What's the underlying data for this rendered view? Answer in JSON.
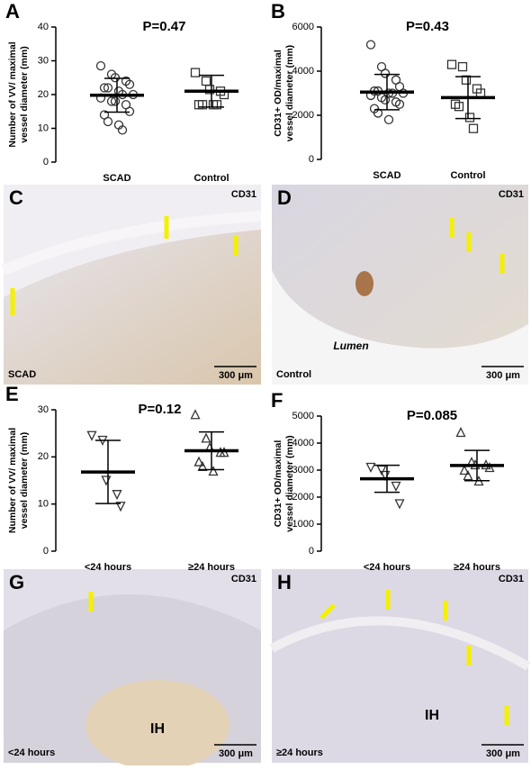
{
  "chart_data": [
    {
      "type": "scatter",
      "panel": "A",
      "annotation": "P=0.47",
      "ylabel": [
        "Number of VV/ maximal",
        "vessel diameter (mm)"
      ],
      "ylim": [
        0,
        40
      ],
      "yticks": [
        0,
        10,
        20,
        30,
        40
      ],
      "groups": [
        {
          "label": "SCAD",
          "marker": "circle",
          "mean": 19.8,
          "sd": 5,
          "values": [
            28.5,
            26,
            25,
            24,
            23,
            22,
            22,
            21,
            20,
            20,
            19,
            18,
            18,
            17,
            15,
            14,
            12,
            11,
            9.5
          ]
        },
        {
          "label": "Control",
          "marker": "square",
          "mean": 21,
          "sd": 4.7,
          "values": [
            26.5,
            24,
            21.5,
            21,
            20,
            17,
            17,
            17,
            17
          ]
        }
      ]
    },
    {
      "type": "scatter",
      "panel": "B",
      "annotation": "P=0.43",
      "ylabel": [
        "CD31+ OD/maximal",
        "vessel diameter (mm)"
      ],
      "ylim": [
        0,
        6000
      ],
      "yticks": [
        0,
        2000,
        4000,
        6000
      ],
      "groups": [
        {
          "label": "SCAD",
          "marker": "circle",
          "mean": 3050,
          "sd": 800,
          "values": [
            5200,
            4200,
            3900,
            3600,
            3300,
            3100,
            3100,
            3000,
            3000,
            3000,
            2900,
            2800,
            2700,
            2600,
            2500,
            2300,
            2100,
            1800
          ]
        },
        {
          "label": "Control",
          "marker": "square",
          "mean": 2800,
          "sd": 950,
          "values": [
            4300,
            4200,
            3600,
            3200,
            3000,
            2500,
            2400,
            1900,
            1400
          ]
        }
      ]
    },
    {
      "type": "scatter",
      "panel": "E",
      "annotation": "P=0.12",
      "ylabel": [
        "Number of VV/ maximal",
        "vessel diameter (mm)"
      ],
      "ylim": [
        0,
        30
      ],
      "yticks": [
        0,
        10,
        20,
        30
      ],
      "groups": [
        {
          "label": "<24 hours",
          "marker": "triangle-down",
          "mean": 16.8,
          "sd": 6.7,
          "values": [
            24.5,
            23.5,
            15,
            12,
            9.5
          ]
        },
        {
          "label": "≥24 hours",
          "marker": "triangle-up",
          "mean": 21.3,
          "sd": 4,
          "values": [
            29,
            24,
            22,
            21,
            21,
            19,
            18,
            17
          ]
        }
      ]
    },
    {
      "type": "scatter",
      "panel": "F",
      "annotation": "P=0.085",
      "ylabel": [
        "CD31+ OD/maximal",
        "vessel diameter (mm)"
      ],
      "ylim": [
        0,
        5000
      ],
      "yticks": [
        0,
        1000,
        2000,
        3000,
        4000,
        5000
      ],
      "groups": [
        {
          "label": "<24 hours",
          "marker": "triangle-down",
          "mean": 2680,
          "sd": 500,
          "values": [
            3100,
            3000,
            2800,
            2400,
            1750
          ]
        },
        {
          "label": "≥24 hours",
          "marker": "triangle-up",
          "mean": 3170,
          "sd": 560,
          "values": [
            4400,
            3300,
            3200,
            3200,
            3100,
            3000,
            2800,
            2600
          ]
        }
      ]
    }
  ],
  "images": [
    {
      "panel": "C",
      "stain": "CD31",
      "label": "SCAD",
      "scale": "300 μm"
    },
    {
      "panel": "D",
      "stain": "CD31",
      "annotation": "Lumen",
      "label": "Control",
      "scale": "300 μm"
    },
    {
      "panel": "G",
      "stain": "CD31",
      "annotation": "IH",
      "label": "<24 hours",
      "scale": "300 μm"
    },
    {
      "panel": "H",
      "stain": "CD31",
      "annotation": "IH",
      "label": "≥24 hours",
      "scale": "300 μm"
    }
  ]
}
